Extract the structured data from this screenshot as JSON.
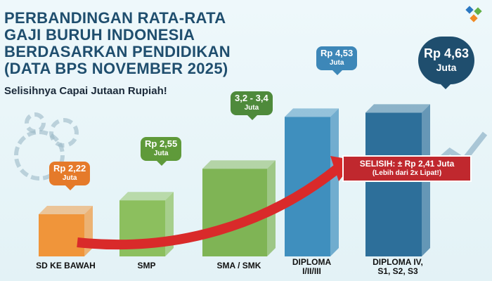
{
  "header": {
    "title_lines": [
      "PERBANDINGAN RATA-RATA",
      "GAJI BURUH INDONESIA",
      "BERDASARKAN PENDIDIKAN",
      "(DATA BPS NOVEMBER 2025)"
    ],
    "subtitle": "Selisihnya Capai Jutaan Rupiah!"
  },
  "callout": {
    "main": "SELISIH: ± Rp 2,41 Juta",
    "sub": "(Lebih dari 2x Lipat!)"
  },
  "chart_data": {
    "type": "bar",
    "title": "PERBANDINGAN RATA-RATA GAJI BURUH INDONESIA BERDASARKAN PENDIDIKAN (DATA BPS NOVEMBER 2025)",
    "unit": "Juta Rupiah",
    "categories": [
      "SD KE BAWAH",
      "SMP",
      "SMA / SMK",
      "DIPLOMA I/II/III",
      "DIPLOMA IV, S1, S2, S3"
    ],
    "category_lines": [
      [
        "SD KE BAWAH"
      ],
      [
        "SMP"
      ],
      [
        "SMA / SMK"
      ],
      [
        "DIPLOMA",
        "I/II/III"
      ],
      [
        "DIPLOMA IV,",
        "S1, S2, S3"
      ]
    ],
    "values": [
      2.22,
      2.55,
      3.3,
      4.53,
      4.63
    ],
    "value_labels": [
      "Rp 2,22",
      "Rp 2,55",
      "3,2 - 3,4",
      "Rp 4,53",
      "Rp 4,63"
    ],
    "value_unit_label": "Juta",
    "bar_colors": [
      "#f0953a",
      "#8cbf5e",
      "#7fb455",
      "#3f8fbe",
      "#2d6f9a"
    ],
    "bubble_colors": [
      "#e57a2a",
      "#5f9a3a",
      "#4e8a3b",
      "#3d87b8",
      "#1f4e6e"
    ]
  }
}
